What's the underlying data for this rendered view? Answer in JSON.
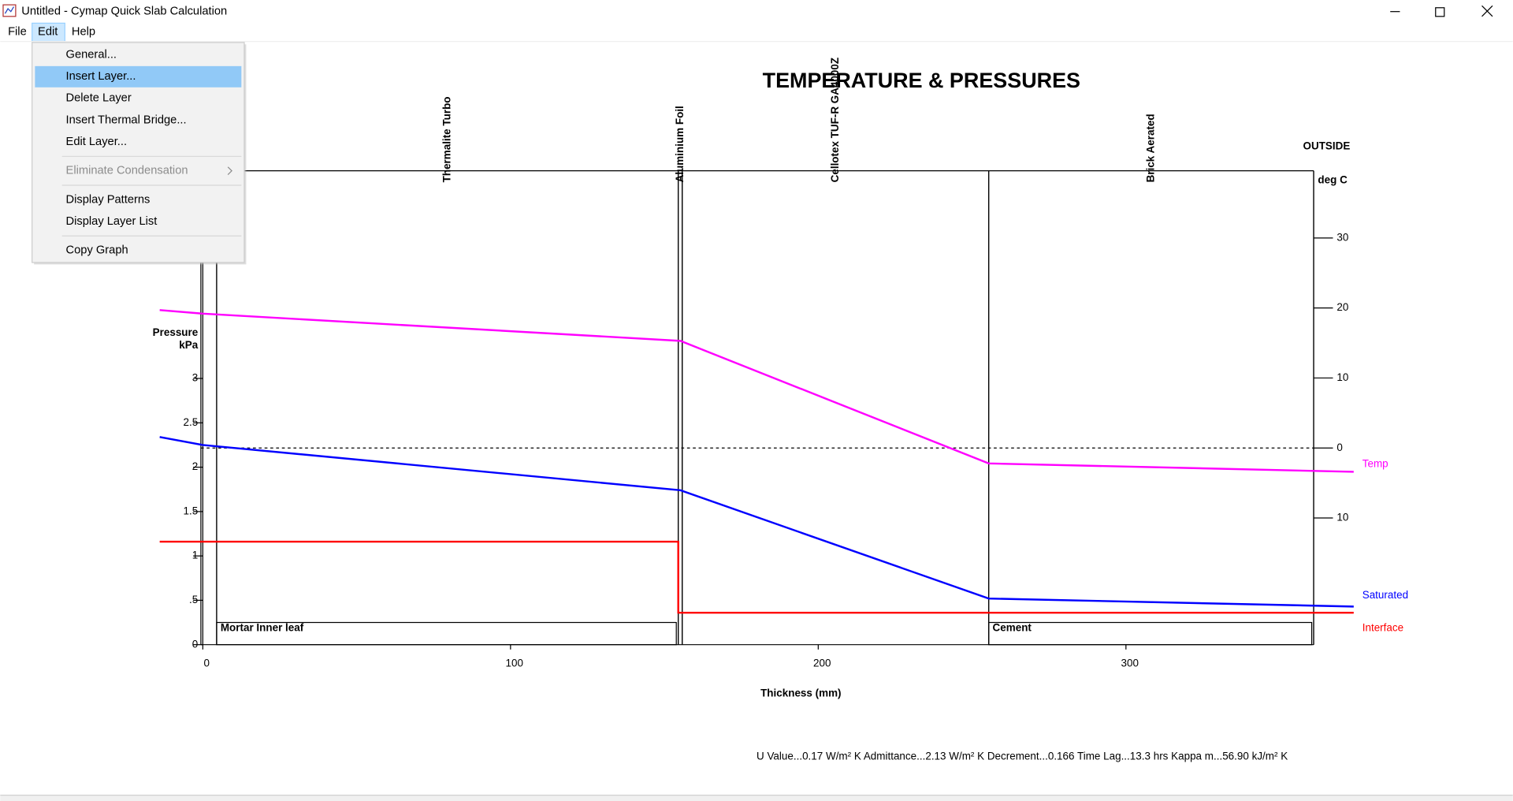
{
  "window": {
    "title": "Untitled - Cymap Quick Slab Calculation"
  },
  "menu_bar": {
    "items": [
      "File",
      "Edit",
      "Help"
    ],
    "open": 1
  },
  "edit_menu": {
    "highlighted": 1,
    "items": [
      {
        "label": "General...",
        "enabled": true,
        "separator_after": false
      },
      {
        "label": "Insert Layer...",
        "enabled": true,
        "separator_after": false
      },
      {
        "label": "Delete Layer",
        "enabled": true,
        "separator_after": false
      },
      {
        "label": "Insert Thermal Bridge...",
        "enabled": true,
        "separator_after": false
      },
      {
        "label": "Edit Layer...",
        "enabled": true,
        "separator_after": true
      },
      {
        "label": "Eliminate Condensation",
        "enabled": false,
        "submenu": true,
        "separator_after": true
      },
      {
        "label": "Display Patterns",
        "enabled": true,
        "separator_after": false
      },
      {
        "label": "Display Layer List",
        "enabled": true,
        "separator_after": true
      },
      {
        "label": "Copy Graph",
        "enabled": true,
        "separator_after": false
      }
    ]
  },
  "chart_data": {
    "type": "line",
    "title": "TEMPERATURE & PRESSURES",
    "outside_label": "OUTSIDE",
    "x_label": "Thickness (mm)",
    "y_label": [
      "Pressure",
      "kPa"
    ],
    "y2_label": "deg C",
    "footer": "U Value...0.17 W/m² K  Admittance...2.13 W/m² K  Decrement...0.166  Time Lag...13.3 hrs  Kappa m...56.90 kJ/m² K",
    "xlim": [
      0,
      361
    ],
    "xticks": [
      0,
      100,
      200,
      300
    ],
    "ylim": [
      0,
      5.34
    ],
    "yticks": [
      0,
      {
        "value": 0.5,
        "label": ".5"
      },
      1,
      1.5,
      2,
      2.5,
      3
    ],
    "y2lim": [
      -28.1,
      39.6
    ],
    "y2ticks": [
      {
        "value": -10,
        "label": "10"
      },
      0,
      10,
      20,
      30
    ],
    "layers": [
      {
        "from": 0,
        "to": 4.5
      },
      {
        "name": "Thermalite Turbo",
        "bottom_name": "Mortar Inner leaf",
        "from": 4.5,
        "to": 154.5
      },
      {
        "name": "Aluminium Foil",
        "from": 154.5,
        "to": 155.8
      },
      {
        "name": "Cellotex TUF-R GA4000Z",
        "from": 155.8,
        "to": 255.4
      },
      {
        "name": "Brick Aerated",
        "bottom_name": "Cement",
        "from": 255.4,
        "to": 361
      }
    ],
    "series": [
      {
        "name": "Temp",
        "color": "#ff00ff",
        "axis": "y2",
        "x": [
          -14,
          0,
          155.2,
          255.4,
          374
        ],
        "values": [
          19.7,
          19.2,
          15.3,
          -2.2,
          -3.4
        ]
      },
      {
        "name": "Saturated",
        "color": "#0000ff",
        "x": [
          -14,
          0,
          155.2,
          255.4,
          374
        ],
        "values": [
          2.34,
          2.25,
          1.74,
          0.52,
          0.43
        ]
      },
      {
        "name": "Interface",
        "color": "#ff0000",
        "x": [
          -14,
          154.5,
          154.5,
          374
        ],
        "values": [
          1.16,
          1.16,
          0.36,
          0.36
        ]
      }
    ]
  }
}
